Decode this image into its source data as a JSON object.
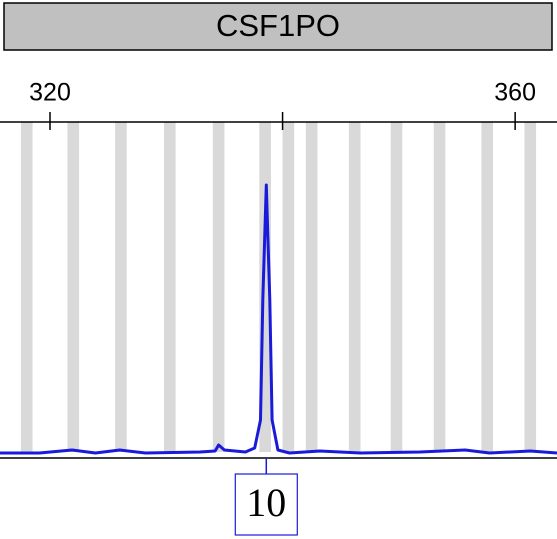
{
  "chart_data": {
    "type": "line",
    "title": "CSF1PO",
    "xlim": [
      315.7,
      363.6
    ],
    "xticks": [
      320,
      360
    ],
    "xticks_unlabeled": [
      340
    ],
    "ylim": [
      -3,
      333
    ],
    "bin_width": 1,
    "bin_color": "#d9d9d9",
    "bin_centers": [
      318.0,
      322.0,
      326.1,
      330.3,
      334.5,
      338.5,
      340.5,
      342.5,
      346.2,
      349.8,
      353.5,
      357.6,
      361.3
    ],
    "series": [
      {
        "color": "#1a1adb",
        "x": [
          315.7,
          319.1,
          321.9,
          323.9,
          326.0,
          328.2,
          332.9,
          334.2,
          334.5,
          335.0,
          336.8,
          337.6,
          338.1,
          338.3,
          338.6,
          338.9,
          339.1,
          339.6,
          340.6,
          343.2,
          346.7,
          351.8,
          355.7,
          357.8,
          361.3,
          363.6
        ],
        "values": [
          2,
          2,
          5,
          2,
          5,
          2,
          3,
          4,
          10,
          5,
          3,
          7,
          35,
          155,
          270,
          155,
          35,
          5,
          2,
          4,
          2,
          3,
          5,
          2,
          4,
          2
        ]
      }
    ],
    "allele_labels": [
      {
        "x": 338.6,
        "label": "10"
      }
    ]
  }
}
